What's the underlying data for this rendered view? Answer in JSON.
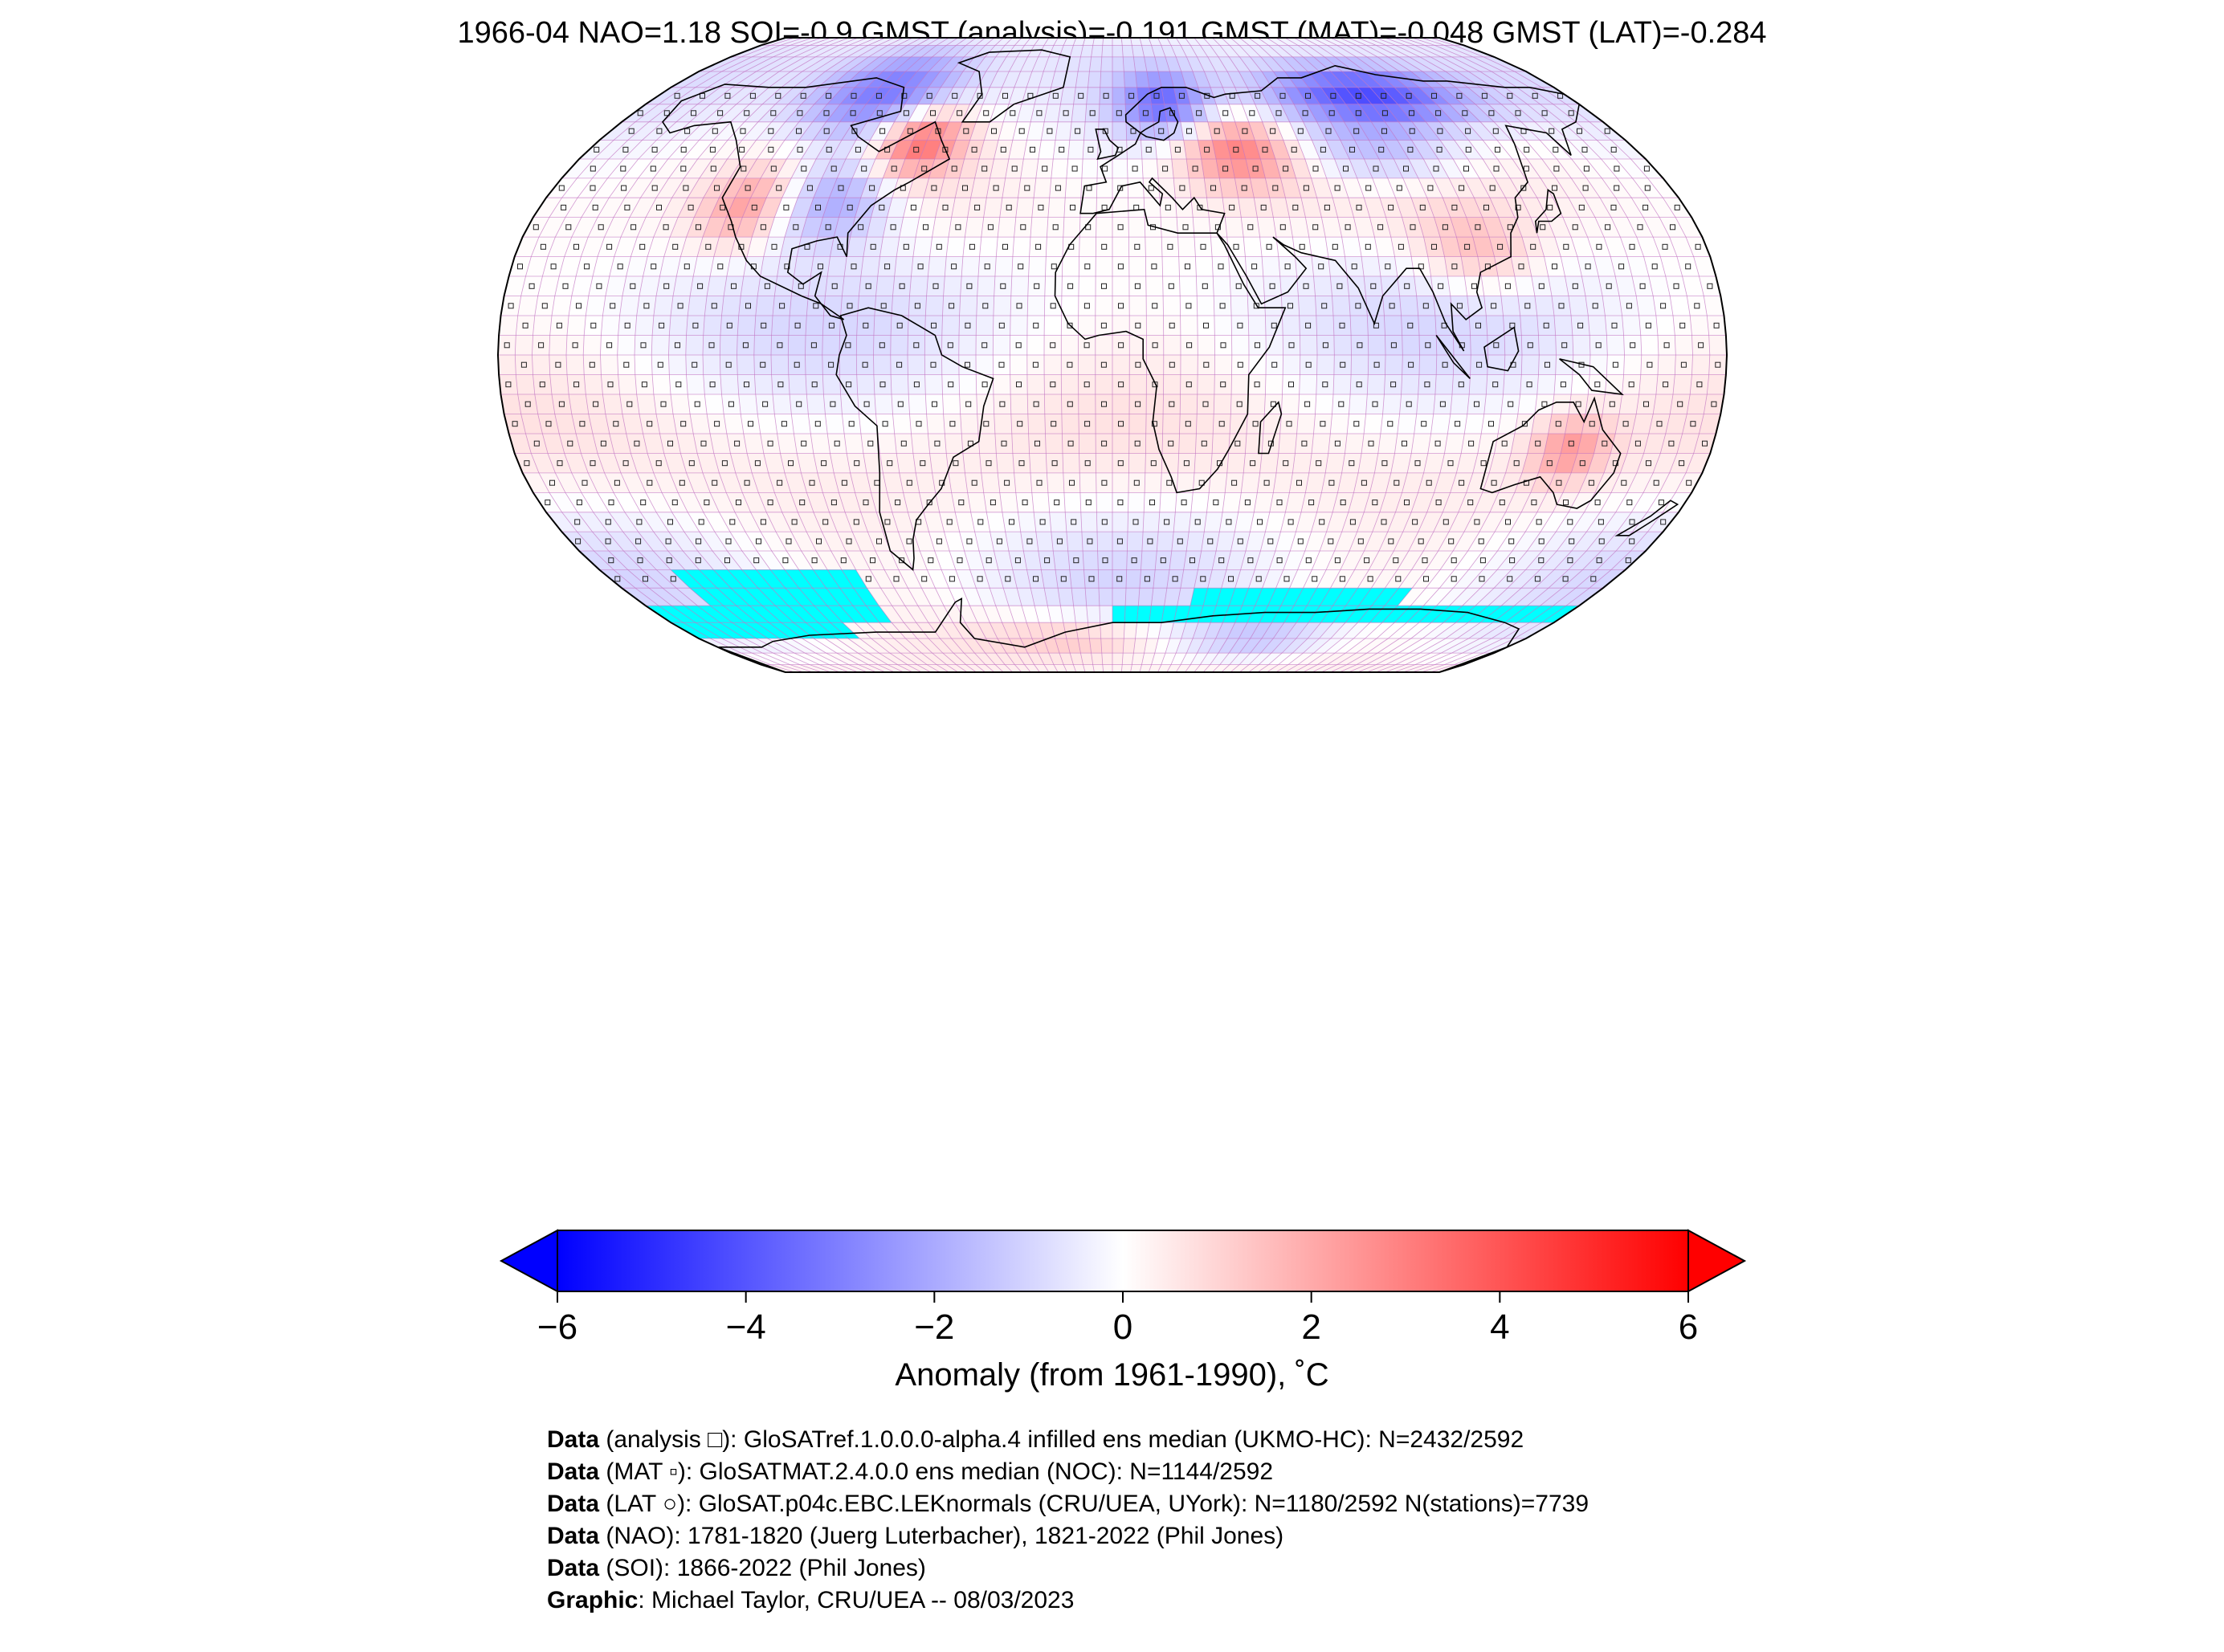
{
  "title": "1966-04 NAO=1.18 SOI=-0.9 GMST (analysis)=-0.191 GMST (MAT)=-0.048 GMST (LAT)=-0.284",
  "colors": {
    "cold_extreme": "#0000ff",
    "neutral": "#ffffff",
    "warm_extreme": "#ff0000",
    "sea_ice_mask": "#00ffff",
    "grid_line": "#c070c0",
    "coastline": "#000000"
  },
  "map": {
    "projection": "Robinson",
    "grid_resolution_deg": 5,
    "markers": {
      "analysis": "square",
      "mat": "small filled square",
      "lat": "circle"
    },
    "anomaly_regions": [
      {
        "region": "northern Canada / Greenland sea",
        "lon": [
          -120,
          -60
        ],
        "lat": [
          55,
          80
        ],
        "anomaly": -3.5
      },
      {
        "region": "central-eastern USA",
        "lon": [
          -105,
          -70
        ],
        "lat": [
          30,
          50
        ],
        "anomaly": -2.5
      },
      {
        "region": "western USA",
        "lon": [
          -125,
          -105
        ],
        "lat": [
          30,
          45
        ],
        "anomaly": 2.0
      },
      {
        "region": "Labrador / Quebec",
        "lon": [
          -80,
          -55
        ],
        "lat": [
          48,
          62
        ],
        "anomaly": 3.5
      },
      {
        "region": "Scandinavia",
        "lon": [
          5,
          35
        ],
        "lat": [
          58,
          72
        ],
        "anomaly": -3.0
      },
      {
        "region": "Eastern Europe / European Russia",
        "lon": [
          25,
          60
        ],
        "lat": [
          45,
          60
        ],
        "anomaly": 3.0
      },
      {
        "region": "Northern Siberia",
        "lon": [
          60,
          140
        ],
        "lat": [
          60,
          75
        ],
        "anomaly": -4.5
      },
      {
        "region": "Central Asia",
        "lon": [
          60,
          120
        ],
        "lat": [
          45,
          58
        ],
        "anomaly": -2.0
      },
      {
        "region": "China / Indochina",
        "lon": [
          95,
          125
        ],
        "lat": [
          18,
          35
        ],
        "anomaly": 1.5
      },
      {
        "region": "Central Australia",
        "lon": [
          130,
          145
        ],
        "lat": [
          -30,
          -18
        ],
        "anomaly": 2.0
      },
      {
        "region": "Antarctic coast",
        "lon": [
          -60,
          30
        ],
        "lat": [
          -80,
          -70
        ],
        "anomaly": 1.5
      },
      {
        "region": "East Antarctica",
        "lon": [
          30,
          100
        ],
        "lat": [
          -80,
          -70
        ],
        "anomaly": -1.5
      }
    ],
    "no_data_regions": [
      {
        "lon": [
          -155,
          -90
        ],
        "lat": [
          -70,
          -55
        ]
      },
      {
        "lon": [
          -180,
          -110
        ],
        "lat": [
          -75,
          -65
        ]
      },
      {
        "lon": [
          0,
          180
        ],
        "lat": [
          -70,
          -65
        ]
      },
      {
        "lon": [
          30,
          110
        ],
        "lat": [
          -65,
          -60
        ]
      }
    ]
  },
  "colorbar": {
    "min": -6,
    "max": 6,
    "ticks": [
      "−6",
      "−4",
      "−2",
      "0",
      "2",
      "4",
      "6"
    ],
    "tick_values": [
      -6,
      -4,
      -2,
      0,
      2,
      4,
      6
    ],
    "extend": "both",
    "label": "Anomaly (from 1961-1990), ˚C"
  },
  "credits": [
    {
      "bold": "Data",
      "text": " (analysis □): GloSATref.1.0.0.0-alpha.4 infilled ens median (UKMO-HC): N=2432/2592"
    },
    {
      "bold": "Data",
      "text": " (MAT ▫): GloSATMAT.2.4.0.0 ens median (NOC): N=1144/2592"
    },
    {
      "bold": "Data",
      "text": " (LAT ○): GloSAT.p04c.EBC.LEKnormals (CRU/UEA, UYork): N=1180/2592 N(stations)=7739"
    },
    {
      "bold": "Data",
      "text": " (NAO): 1781-1820 (Juerg Luterbacher), 1821-2022 (Phil Jones)"
    },
    {
      "bold": "Data",
      "text": " (SOI): 1866-2022 (Phil Jones)"
    },
    {
      "bold": "Graphic",
      "text": ": Michael Taylor, CRU/UEA -- 08/03/2023"
    }
  ]
}
